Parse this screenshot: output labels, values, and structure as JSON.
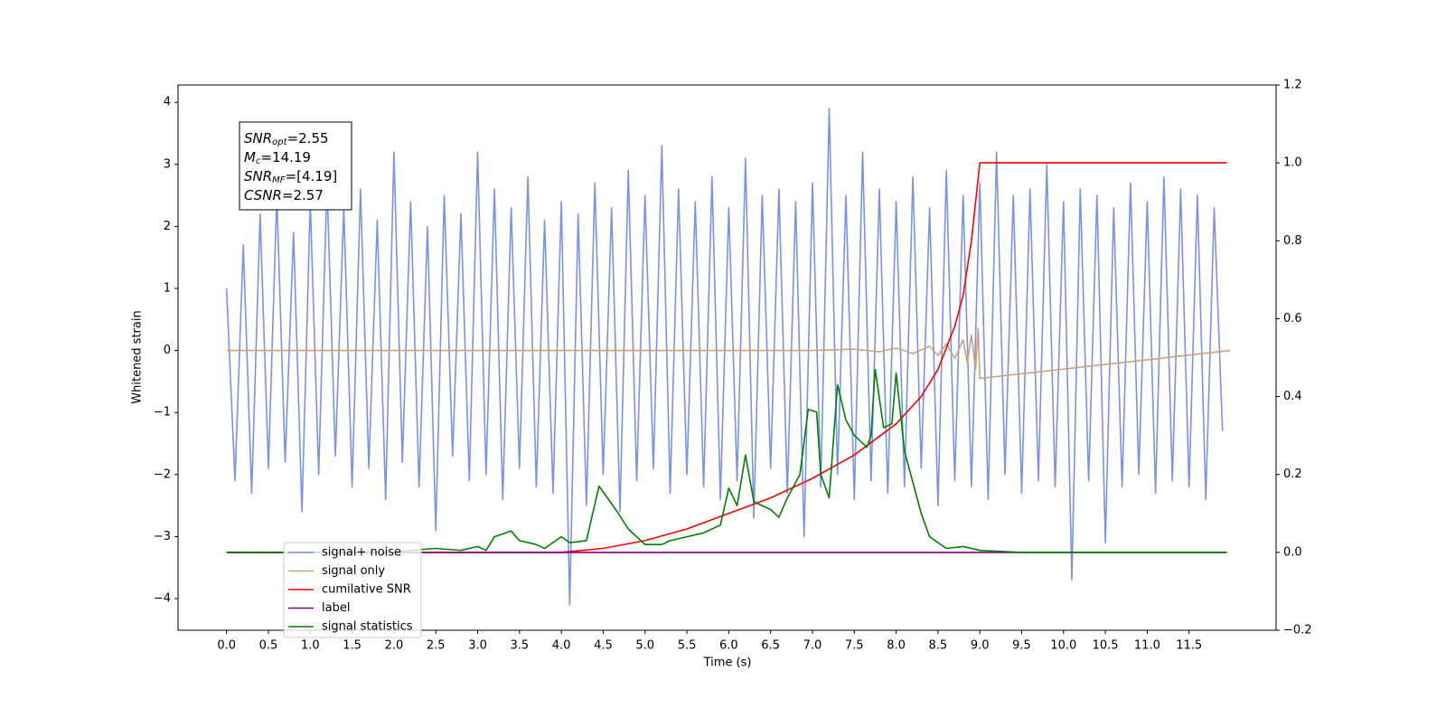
{
  "chart_data": {
    "type": "line",
    "xlabel": "Time (s)",
    "ylabel": "Whitened strain",
    "xlim": [
      -0.58,
      12.54
    ],
    "ylim": [
      -4.51,
      4.28
    ],
    "y2lim": [
      -0.2,
      1.2
    ],
    "xticks": [
      {
        "value": 0,
        "label": "0.0"
      },
      0.5,
      {
        "value": 1,
        "label": "1.0"
      },
      1.5,
      {
        "value": 2,
        "label": "2.0"
      },
      2.5,
      {
        "value": 3,
        "label": "3.0"
      },
      3.5,
      {
        "value": 4,
        "label": "4.0"
      },
      4.5,
      {
        "value": 5,
        "label": "5.0"
      },
      5.5,
      {
        "value": 6,
        "label": "6.0"
      },
      6.5,
      {
        "value": 7,
        "label": "7.0"
      },
      7.5,
      {
        "value": 8,
        "label": "8.0"
      },
      8.5,
      {
        "value": 9,
        "label": "9.0"
      },
      9.5,
      {
        "value": 10,
        "label": "10.0"
      },
      10.5,
      {
        "value": 11,
        "label": "11.0"
      },
      11.5
    ],
    "yticks": [
      {
        "value": -4,
        "label": "−4"
      },
      {
        "value": -3,
        "label": "−3"
      },
      {
        "value": -2,
        "label": "−2"
      },
      {
        "value": -1,
        "label": "−1"
      },
      0,
      1,
      2,
      3,
      4
    ],
    "y2ticks": [
      {
        "value": -0.2,
        "label": "−0.2"
      },
      {
        "value": 0,
        "label": "0.0"
      },
      0.2,
      0.4,
      0.6,
      0.8,
      {
        "value": 1,
        "label": "1.0"
      },
      1.2
    ],
    "legend": "lower left",
    "annotations": [
      {
        "base": "SNR",
        "sub": "opt",
        "text": "=2.55"
      },
      {
        "base": "M",
        "sub": "c",
        "text": "=14.19"
      },
      {
        "base": "SNR",
        "sub": "MF",
        "text": "=[4.19]"
      },
      {
        "base": "CSNR",
        "text": "=2.57"
      }
    ],
    "series": [
      {
        "name": "signal+ noise",
        "color": "#7b93e6",
        "x": [
          0,
          0.1,
          0.2,
          0.3,
          0.4,
          0.5,
          0.6,
          0.7,
          0.8,
          0.9,
          1,
          1.1,
          1.2,
          1.3,
          1.4,
          1.5,
          1.6,
          1.7,
          1.8,
          1.9,
          2,
          2.1,
          2.2,
          2.3,
          2.4,
          2.5,
          2.6,
          2.7,
          2.8,
          2.9,
          3,
          3.1,
          3.2,
          3.3,
          3.4,
          3.5,
          3.6,
          3.7,
          3.8,
          3.9,
          4,
          4.1,
          4.2,
          4.3,
          4.4,
          4.5,
          4.6,
          4.7,
          4.8,
          4.9,
          5,
          5.1,
          5.2,
          5.3,
          5.4,
          5.5,
          5.6,
          5.7,
          5.8,
          5.9,
          6,
          6.1,
          6.2,
          6.3,
          6.4,
          6.5,
          6.6,
          6.7,
          6.8,
          6.9,
          7,
          7.1,
          7.2,
          7.3,
          7.4,
          7.5,
          7.6,
          7.7,
          7.8,
          7.9,
          8,
          8.1,
          8.2,
          8.3,
          8.4,
          8.5,
          8.6,
          8.7,
          8.8,
          8.9,
          9,
          9.1,
          9.2,
          9.3,
          9.4,
          9.5,
          9.6,
          9.7,
          9.8,
          9.9,
          10,
          10.1,
          10.2,
          10.3,
          10.4,
          10.5,
          10.6,
          10.7,
          10.8,
          10.9,
          11,
          11.1,
          11.2,
          11.3,
          11.4,
          11.5,
          11.6,
          11.7,
          11.8,
          11.9
        ],
        "values": [
          1.0,
          -2.1,
          1.7,
          -2.3,
          2.2,
          -1.9,
          2.5,
          -1.8,
          1.9,
          -2.6,
          2.4,
          -2.0,
          2.7,
          -1.7,
          2.3,
          -2.2,
          2.6,
          -1.9,
          2.1,
          -2.4,
          3.2,
          -1.8,
          2.4,
          -2.2,
          2.0,
          -2.9,
          2.5,
          -1.7,
          2.2,
          -2.1,
          3.2,
          -2.0,
          2.6,
          -2.4,
          2.3,
          -1.9,
          2.8,
          -2.2,
          2.1,
          -2.3,
          2.4,
          -4.1,
          2.2,
          -2.5,
          2.7,
          -2.0,
          2.3,
          -2.6,
          2.9,
          -2.1,
          2.5,
          -1.9,
          3.3,
          -2.3,
          2.6,
          -2.0,
          2.4,
          -2.2,
          2.8,
          -2.4,
          2.3,
          -2.1,
          3.1,
          -2.7,
          2.5,
          -1.9,
          2.6,
          -2.3,
          2.4,
          -3.0,
          2.7,
          -2.2,
          3.9,
          -2.0,
          2.5,
          -2.4,
          3.2,
          -2.1,
          2.6,
          -2.3,
          2.4,
          -2.2,
          2.8,
          -1.9,
          2.3,
          -2.5,
          2.9,
          -2.1,
          2.5,
          -2.2,
          2.7,
          -2.4,
          3.2,
          -2.0,
          2.5,
          -2.3,
          2.6,
          -2.1,
          3.0,
          -2.2,
          2.4,
          -3.7,
          2.6,
          -2.1,
          2.5,
          -3.1,
          2.3,
          -2.2,
          2.7,
          -2.0,
          2.4,
          -2.3,
          2.8,
          -2.1,
          2.6,
          -2.2,
          2.5,
          -2.4,
          2.3,
          -1.3
        ]
      },
      {
        "name": "signal only",
        "color": "#c9a478",
        "x": [
          0,
          7,
          7.5,
          7.8,
          8.0,
          8.2,
          8.4,
          8.5,
          8.6,
          8.7,
          8.8,
          8.85,
          8.9,
          8.95,
          8.98,
          9.0,
          11.99
        ],
        "values": [
          0,
          0,
          0.02,
          -0.02,
          0.04,
          -0.05,
          0.07,
          -0.08,
          0.11,
          -0.13,
          0.17,
          -0.2,
          0.25,
          -0.3,
          0.35,
          -0.45,
          0
        ]
      },
      {
        "name": "cumilative SNR",
        "color": "#ff0000",
        "axis": "y2",
        "x": [
          0,
          4,
          4.5,
          5,
          5.5,
          6,
          6.5,
          7,
          7.5,
          8,
          8.3,
          8.5,
          8.7,
          8.8,
          8.9,
          8.95,
          9.0,
          11.95
        ],
        "values": [
          0,
          0,
          0.01,
          0.03,
          0.06,
          0.1,
          0.14,
          0.19,
          0.25,
          0.33,
          0.4,
          0.47,
          0.58,
          0.66,
          0.8,
          0.9,
          1.0,
          1.0
        ]
      },
      {
        "name": "label",
        "color": "#800080",
        "axis": "y2",
        "x": [
          0,
          11.95
        ],
        "values": [
          0,
          0
        ]
      },
      {
        "name": "signal statistics",
        "color": "#008000",
        "axis": "y2",
        "x": [
          0,
          2,
          2.2,
          2.5,
          2.8,
          3,
          3.1,
          3.2,
          3.4,
          3.5,
          3.7,
          3.8,
          4,
          4.1,
          4.3,
          4.45,
          4.55,
          4.65,
          4.8,
          5,
          5.2,
          5.3,
          5.5,
          5.7,
          5.9,
          6,
          6.1,
          6.2,
          6.3,
          6.5,
          6.6,
          6.7,
          6.85,
          6.95,
          7.05,
          7.1,
          7.2,
          7.3,
          7.4,
          7.5,
          7.65,
          7.7,
          7.75,
          7.85,
          7.95,
          8,
          8.1,
          8.3,
          8.4,
          8.6,
          8.8,
          9,
          9.5,
          11.95
        ],
        "values": [
          0,
          0,
          0.005,
          0.01,
          0.005,
          0.015,
          0.005,
          0.04,
          0.055,
          0.03,
          0.02,
          0.01,
          0.04,
          0.025,
          0.03,
          0.17,
          0.14,
          0.11,
          0.06,
          0.02,
          0.02,
          0.03,
          0.04,
          0.05,
          0.07,
          0.165,
          0.12,
          0.25,
          0.13,
          0.11,
          0.09,
          0.14,
          0.2,
          0.367,
          0.36,
          0.2,
          0.14,
          0.43,
          0.34,
          0.3,
          0.27,
          0.3,
          0.47,
          0.32,
          0.33,
          0.46,
          0.26,
          0.1,
          0.04,
          0.01,
          0.015,
          0.005,
          0,
          0
        ]
      }
    ]
  }
}
